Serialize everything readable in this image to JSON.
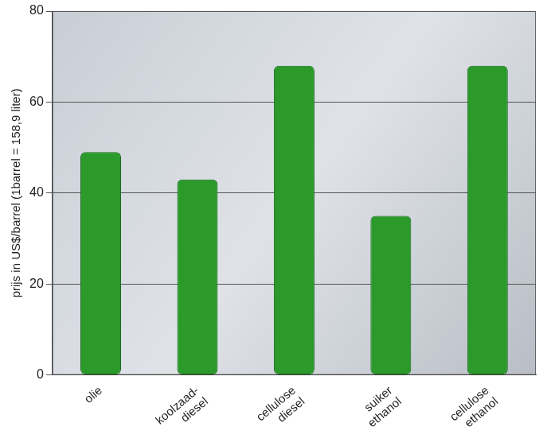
{
  "chart_data": {
    "type": "bar",
    "y_label": "prijs in US$/barrel (1barrel = 158,9 liter)",
    "categories": [
      "olie",
      "koolzaad-diesel",
      "cellulose diesel",
      "suiker ethanol",
      "cellulose ethanol"
    ],
    "values": [
      49,
      43,
      68,
      35,
      68
    ],
    "color": "#2b9a2b",
    "ylim": [
      0,
      80
    ],
    "yticks": [
      0,
      20,
      40,
      60,
      80
    ],
    "grid": true
  }
}
